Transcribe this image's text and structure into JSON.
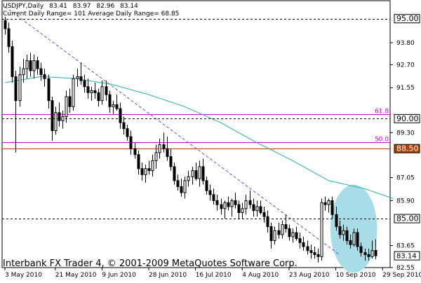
{
  "header": {
    "symbol_tf": "USDJPY,Daily",
    "o": "83.41",
    "h": "83.97",
    "l": "82.96",
    "c": "83.14",
    "ranges": "Current Daily Range= 101   Average Daily Range= 68.85"
  },
  "copyright": "Interbank FX Trader 4, © 2001-2009 MetaQuotes Software Corp.",
  "colors": {
    "background": "#ffffff",
    "candle": "#000000",
    "ma": "#20b2aa",
    "fib": "#cc00cc",
    "level_brown": "#b04000",
    "highlight": "#a8dce6",
    "trend": "#5555cc"
  },
  "chart_data": {
    "type": "candlestick",
    "ylim": [
      82.55,
      95.9
    ],
    "y_ticks": [
      "93.80",
      "92.70",
      "91.55",
      "89.30",
      "87.05",
      "85.90",
      "83.65",
      "82.55"
    ],
    "x_ticks": [
      "3 May 2010",
      "21 May 2010",
      "9 Jun 2010",
      "28 Jun 2010",
      "16 Jul 2010",
      "4 Aug 2010",
      "23 Aug 2010",
      "10 Sep 2010",
      "29 Sep 2010"
    ],
    "x_tick_index": [
      0,
      14,
      27,
      40,
      53,
      66,
      79,
      92,
      105
    ],
    "current_price": "83.14",
    "levels": [
      {
        "value": 95.0,
        "label": "95.00",
        "style": "dashed",
        "color": "#000000",
        "boxed": true
      },
      {
        "value": 90.22,
        "label": "61.8",
        "style": "solid",
        "color": "#cc00cc",
        "boxed": false
      },
      {
        "value": 90.0,
        "label": "90.00",
        "style": "dashed",
        "color": "#000000",
        "boxed": true
      },
      {
        "value": 88.82,
        "label": "50.0",
        "style": "solid",
        "color": "#cc00cc",
        "boxed": false
      },
      {
        "value": 88.5,
        "label": "88.50",
        "style": "solid",
        "color": "#b04000",
        "boxed": true,
        "box_color": "#b04000"
      },
      {
        "value": 85.0,
        "label": "85.00",
        "style": "dashed",
        "color": "#000000",
        "boxed": true
      }
    ],
    "trendline": {
      "from": {
        "index": 0,
        "value": 95.6
      },
      "to": {
        "index": 93,
        "value": 83.2
      }
    },
    "ma_series": [
      {
        "index": 0,
        "value": 91.8
      },
      {
        "index": 10,
        "value": 92.1
      },
      {
        "index": 20,
        "value": 92.0
      },
      {
        "index": 30,
        "value": 91.7
      },
      {
        "index": 40,
        "value": 91.2
      },
      {
        "index": 50,
        "value": 90.6
      },
      {
        "index": 60,
        "value": 89.8
      },
      {
        "index": 70,
        "value": 88.8
      },
      {
        "index": 80,
        "value": 87.9
      },
      {
        "index": 90,
        "value": 86.9
      },
      {
        "index": 100,
        "value": 86.5
      },
      {
        "index": 108,
        "value": 86.0
      }
    ],
    "highlight_ellipse": {
      "center_index": 97,
      "center_value": 84.5,
      "half_width_bars": 6.5,
      "half_height": 2.2
    },
    "candles": [
      {
        "o": 94.9,
        "h": 95.1,
        "l": 94.2,
        "c": 94.5
      },
      {
        "o": 94.5,
        "h": 94.8,
        "l": 93.3,
        "c": 93.6
      },
      {
        "o": 93.6,
        "h": 93.9,
        "l": 91.8,
        "c": 92.1
      },
      {
        "o": 92.1,
        "h": 92.4,
        "l": 88.3,
        "c": 90.9
      },
      {
        "o": 90.9,
        "h": 92.6,
        "l": 90.6,
        "c": 92.2
      },
      {
        "o": 92.2,
        "h": 93.0,
        "l": 91.8,
        "c": 92.5
      },
      {
        "o": 92.5,
        "h": 93.2,
        "l": 92.0,
        "c": 92.9
      },
      {
        "o": 92.9,
        "h": 93.3,
        "l": 92.1,
        "c": 92.4
      },
      {
        "o": 92.4,
        "h": 93.2,
        "l": 92.0,
        "c": 92.9
      },
      {
        "o": 92.9,
        "h": 93.1,
        "l": 92.2,
        "c": 92.5
      },
      {
        "o": 92.5,
        "h": 92.8,
        "l": 91.9,
        "c": 92.2
      },
      {
        "o": 92.2,
        "h": 92.5,
        "l": 91.6,
        "c": 92.0
      },
      {
        "o": 92.0,
        "h": 92.2,
        "l": 90.5,
        "c": 90.9
      },
      {
        "o": 90.9,
        "h": 91.1,
        "l": 88.9,
        "c": 89.4
      },
      {
        "o": 89.4,
        "h": 90.6,
        "l": 89.2,
        "c": 90.3
      },
      {
        "o": 90.3,
        "h": 90.8,
        "l": 89.6,
        "c": 89.9
      },
      {
        "o": 89.9,
        "h": 90.4,
        "l": 89.5,
        "c": 90.1
      },
      {
        "o": 90.1,
        "h": 91.4,
        "l": 89.8,
        "c": 91.1
      },
      {
        "o": 91.1,
        "h": 91.5,
        "l": 90.3,
        "c": 90.6
      },
      {
        "o": 90.6,
        "h": 92.2,
        "l": 90.4,
        "c": 92.0
      },
      {
        "o": 92.0,
        "h": 92.5,
        "l": 91.6,
        "c": 92.1
      },
      {
        "o": 92.1,
        "h": 92.8,
        "l": 91.7,
        "c": 91.9
      },
      {
        "o": 91.9,
        "h": 92.2,
        "l": 91.3,
        "c": 91.6
      },
      {
        "o": 91.6,
        "h": 92.0,
        "l": 91.0,
        "c": 91.3
      },
      {
        "o": 91.3,
        "h": 91.6,
        "l": 90.9,
        "c": 91.4
      },
      {
        "o": 91.4,
        "h": 91.8,
        "l": 91.0,
        "c": 91.3
      },
      {
        "o": 91.3,
        "h": 91.5,
        "l": 90.6,
        "c": 90.9
      },
      {
        "o": 90.9,
        "h": 91.9,
        "l": 90.7,
        "c": 91.6
      },
      {
        "o": 91.6,
        "h": 91.9,
        "l": 90.9,
        "c": 91.2
      },
      {
        "o": 91.2,
        "h": 91.4,
        "l": 90.3,
        "c": 90.6
      },
      {
        "o": 90.6,
        "h": 90.9,
        "l": 90.2,
        "c": 90.7
      },
      {
        "o": 90.7,
        "h": 91.2,
        "l": 90.4,
        "c": 90.5
      },
      {
        "o": 90.5,
        "h": 90.8,
        "l": 89.5,
        "c": 89.8
      },
      {
        "o": 89.8,
        "h": 90.1,
        "l": 89.2,
        "c": 89.5
      },
      {
        "o": 89.5,
        "h": 89.7,
        "l": 88.9,
        "c": 89.1
      },
      {
        "o": 89.1,
        "h": 89.4,
        "l": 88.2,
        "c": 88.5
      },
      {
        "o": 88.5,
        "h": 88.8,
        "l": 88.0,
        "c": 88.2
      },
      {
        "o": 88.2,
        "h": 88.4,
        "l": 87.2,
        "c": 87.5
      },
      {
        "o": 87.5,
        "h": 87.8,
        "l": 86.9,
        "c": 87.2
      },
      {
        "o": 87.2,
        "h": 87.7,
        "l": 86.8,
        "c": 87.5
      },
      {
        "o": 87.5,
        "h": 87.9,
        "l": 87.2,
        "c": 87.4
      },
      {
        "o": 87.4,
        "h": 88.2,
        "l": 87.1,
        "c": 87.9
      },
      {
        "o": 87.9,
        "h": 88.7,
        "l": 87.5,
        "c": 88.3
      },
      {
        "o": 88.3,
        "h": 89.0,
        "l": 88.0,
        "c": 88.7
      },
      {
        "o": 88.7,
        "h": 89.3,
        "l": 88.3,
        "c": 88.5
      },
      {
        "o": 88.5,
        "h": 89.1,
        "l": 87.9,
        "c": 88.1
      },
      {
        "o": 88.1,
        "h": 88.5,
        "l": 87.4,
        "c": 87.6
      },
      {
        "o": 87.6,
        "h": 87.8,
        "l": 86.7,
        "c": 86.9
      },
      {
        "o": 86.9,
        "h": 87.2,
        "l": 86.4,
        "c": 86.6
      },
      {
        "o": 86.6,
        "h": 87.0,
        "l": 86.1,
        "c": 86.3
      },
      {
        "o": 86.3,
        "h": 87.1,
        "l": 86.0,
        "c": 86.9
      },
      {
        "o": 86.9,
        "h": 87.4,
        "l": 86.6,
        "c": 87.1
      },
      {
        "o": 87.1,
        "h": 87.6,
        "l": 86.7,
        "c": 87.4
      },
      {
        "o": 87.4,
        "h": 87.8,
        "l": 86.9,
        "c": 87.0
      },
      {
        "o": 87.0,
        "h": 87.9,
        "l": 86.6,
        "c": 87.6
      },
      {
        "o": 87.6,
        "h": 88.0,
        "l": 86.7,
        "c": 86.9
      },
      {
        "o": 86.9,
        "h": 87.1,
        "l": 86.2,
        "c": 86.4
      },
      {
        "o": 86.4,
        "h": 86.7,
        "l": 85.9,
        "c": 86.2
      },
      {
        "o": 86.2,
        "h": 86.5,
        "l": 85.7,
        "c": 85.9
      },
      {
        "o": 85.9,
        "h": 86.2,
        "l": 85.4,
        "c": 85.7
      },
      {
        "o": 85.7,
        "h": 86.0,
        "l": 85.2,
        "c": 85.5
      },
      {
        "o": 85.5,
        "h": 85.9,
        "l": 85.0,
        "c": 85.8
      },
      {
        "o": 85.8,
        "h": 86.1,
        "l": 85.4,
        "c": 85.6
      },
      {
        "o": 85.6,
        "h": 86.0,
        "l": 85.1,
        "c": 85.9
      },
      {
        "o": 85.9,
        "h": 86.3,
        "l": 85.5,
        "c": 85.7
      },
      {
        "o": 85.7,
        "h": 85.9,
        "l": 85.0,
        "c": 85.3
      },
      {
        "o": 85.3,
        "h": 85.8,
        "l": 85.0,
        "c": 85.5
      },
      {
        "o": 85.5,
        "h": 86.2,
        "l": 85.2,
        "c": 85.9
      },
      {
        "o": 85.9,
        "h": 86.4,
        "l": 85.5,
        "c": 85.7
      },
      {
        "o": 85.7,
        "h": 86.0,
        "l": 85.1,
        "c": 85.4
      },
      {
        "o": 85.4,
        "h": 85.9,
        "l": 85.1,
        "c": 85.6
      },
      {
        "o": 85.6,
        "h": 85.9,
        "l": 85.2,
        "c": 85.3
      },
      {
        "o": 85.3,
        "h": 85.6,
        "l": 84.8,
        "c": 85.1
      },
      {
        "o": 85.1,
        "h": 85.4,
        "l": 84.3,
        "c": 84.6
      },
      {
        "o": 84.6,
        "h": 84.8,
        "l": 83.5,
        "c": 83.9
      },
      {
        "o": 83.9,
        "h": 84.6,
        "l": 83.7,
        "c": 84.4
      },
      {
        "o": 84.4,
        "h": 84.8,
        "l": 84.0,
        "c": 84.2
      },
      {
        "o": 84.2,
        "h": 84.9,
        "l": 84.0,
        "c": 84.7
      },
      {
        "o": 84.7,
        "h": 85.2,
        "l": 84.3,
        "c": 84.5
      },
      {
        "o": 84.5,
        "h": 84.7,
        "l": 83.9,
        "c": 84.1
      },
      {
        "o": 84.1,
        "h": 84.5,
        "l": 83.8,
        "c": 84.3
      },
      {
        "o": 84.3,
        "h": 84.6,
        "l": 83.9,
        "c": 84.0
      },
      {
        "o": 84.0,
        "h": 84.3,
        "l": 83.5,
        "c": 83.8
      },
      {
        "o": 83.8,
        "h": 84.1,
        "l": 83.4,
        "c": 83.6
      },
      {
        "o": 83.6,
        "h": 83.9,
        "l": 83.2,
        "c": 83.4
      },
      {
        "o": 83.4,
        "h": 83.7,
        "l": 83.0,
        "c": 83.3
      },
      {
        "o": 83.3,
        "h": 83.6,
        "l": 83.0,
        "c": 83.2
      },
      {
        "o": 83.2,
        "h": 83.5,
        "l": 82.8,
        "c": 83.1
      },
      {
        "o": 83.1,
        "h": 86.0,
        "l": 82.9,
        "c": 85.8
      },
      {
        "o": 85.8,
        "h": 86.1,
        "l": 85.4,
        "c": 85.7
      },
      {
        "o": 85.7,
        "h": 86.0,
        "l": 85.3,
        "c": 85.9
      },
      {
        "o": 85.9,
        "h": 86.1,
        "l": 85.0,
        "c": 85.2
      },
      {
        "o": 85.2,
        "h": 85.6,
        "l": 84.4,
        "c": 84.6
      },
      {
        "o": 84.6,
        "h": 84.9,
        "l": 84.0,
        "c": 84.2
      },
      {
        "o": 84.2,
        "h": 84.7,
        "l": 83.9,
        "c": 84.4
      },
      {
        "o": 84.4,
        "h": 84.6,
        "l": 83.7,
        "c": 83.9
      },
      {
        "o": 83.9,
        "h": 84.2,
        "l": 83.5,
        "c": 83.7
      },
      {
        "o": 83.7,
        "h": 84.5,
        "l": 83.6,
        "c": 84.3
      },
      {
        "o": 84.3,
        "h": 84.5,
        "l": 83.4,
        "c": 83.6
      },
      {
        "o": 83.6,
        "h": 83.8,
        "l": 83.1,
        "c": 83.3
      },
      {
        "o": 83.3,
        "h": 83.5,
        "l": 82.9,
        "c": 83.2
      },
      {
        "o": 83.2,
        "h": 83.5,
        "l": 82.9,
        "c": 83.1
      },
      {
        "o": 83.1,
        "h": 83.9,
        "l": 83.0,
        "c": 83.4
      },
      {
        "o": 83.41,
        "h": 83.97,
        "l": 82.96,
        "c": 83.14
      }
    ]
  }
}
